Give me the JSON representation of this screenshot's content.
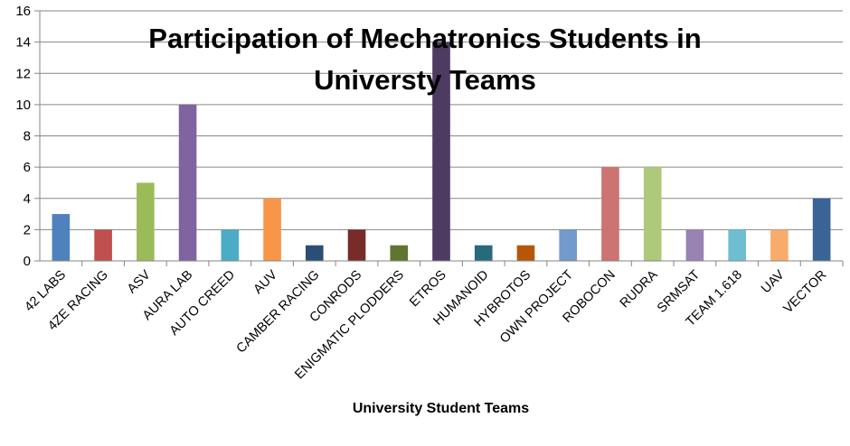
{
  "chart_data": {
    "type": "bar",
    "title": "Participation of Mechatronics Students in Universty Teams",
    "xlabel": "University Student Teams",
    "ylabel": "",
    "ylim": [
      0,
      16
    ],
    "yticks": [
      0,
      2,
      4,
      6,
      8,
      10,
      12,
      14,
      16
    ],
    "grid": true,
    "legend": "none",
    "categories": [
      "42 LABS",
      "4ZE RACING",
      "ASV",
      "AURA LAB",
      "AUTO CREED",
      "AUV",
      "CAMBER RACING",
      "CONRODS",
      "ENIGMATIC PLODDERS",
      "ETROS",
      "HUMANOID",
      "HYBROTOS",
      "OWN PROJECT",
      "ROBOCON",
      "RUDRA",
      "SRMSAT",
      "TEAM 1.618",
      "UAV",
      "VECTOR"
    ],
    "values": [
      3,
      2,
      5,
      10,
      2,
      4,
      1,
      2,
      1,
      14,
      1,
      1,
      2,
      6,
      6,
      2,
      2,
      2,
      4
    ],
    "colors": [
      "#4f81bd",
      "#c0504d",
      "#9bbb59",
      "#8064a2",
      "#4bacc6",
      "#f79646",
      "#2c4d75",
      "#772c2a",
      "#5f7530",
      "#4d3b62",
      "#276a7c",
      "#b65708",
      "#729aca",
      "#cd7371",
      "#afc97a",
      "#9983b5",
      "#6fbdd1",
      "#f9ab6b",
      "#3a6496"
    ]
  }
}
